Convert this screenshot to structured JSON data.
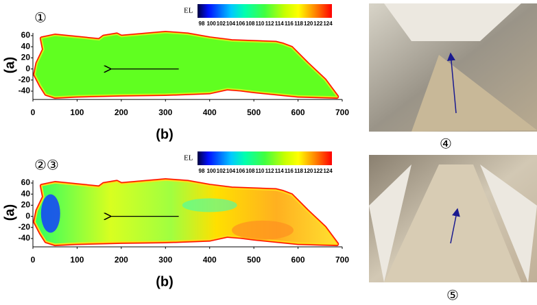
{
  "panels": [
    {
      "label": "①",
      "legend": {
        "title": "EL",
        "ticks": [
          "98",
          "100",
          "102",
          "104",
          "106",
          "108",
          "110",
          "112",
          "114",
          "116",
          "118",
          "120",
          "122",
          "124"
        ]
      },
      "y_axis": {
        "label": "(a)",
        "ticks": [
          "60",
          "40",
          "20",
          "0",
          "-20",
          "-40"
        ]
      },
      "x_axis": {
        "label": "(b)",
        "ticks": [
          "0",
          "100",
          "200",
          "300",
          "400",
          "500",
          "600",
          "700"
        ]
      }
    },
    {
      "label": "②③",
      "legend": {
        "title": "EL",
        "ticks": [
          "98",
          "100",
          "102",
          "104",
          "106",
          "108",
          "110",
          "112",
          "114",
          "116",
          "118",
          "120",
          "122",
          "124"
        ]
      },
      "y_axis": {
        "label": "(a)",
        "ticks": [
          "60",
          "40",
          "20",
          "0",
          "-20",
          "-40"
        ]
      },
      "x_axis": {
        "label": "(b)",
        "ticks": [
          "0",
          "100",
          "200",
          "300",
          "400",
          "500",
          "600",
          "700"
        ]
      }
    }
  ],
  "photos": [
    {
      "label": "④"
    },
    {
      "label": "⑤"
    }
  ]
}
